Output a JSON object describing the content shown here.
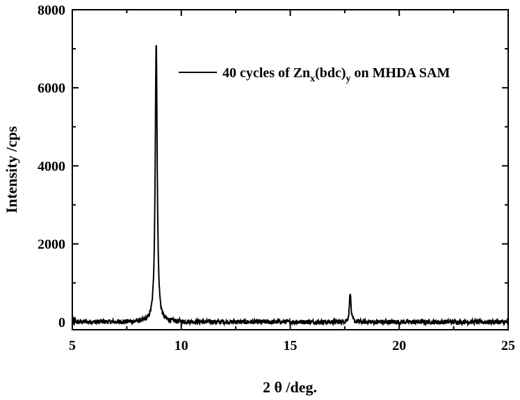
{
  "chart_data": {
    "type": "line",
    "xlabel": "2 θ  /deg.",
    "ylabel": "Intensity /cps",
    "xlim": [
      5,
      25
    ],
    "ylim": [
      -200,
      8000
    ],
    "xticks": [
      5,
      10,
      15,
      20,
      25
    ],
    "yticks": [
      0,
      2000,
      4000,
      6000,
      8000
    ],
    "grid": false,
    "legend_position": "top-right",
    "legend": {
      "main": "40 cycles of Zn",
      "sub1": "x",
      "mid": "(bdc)",
      "sub2": "y",
      "tail": " on MHDA SAM"
    },
    "series": [
      {
        "name": "40 cycles of Zn_x(bdc)_y on MHDA SAM",
        "color": "#000000",
        "peaks": [
          {
            "x": 8.85,
            "height": 7200,
            "width": 0.08
          },
          {
            "x": 17.75,
            "height": 780,
            "width": 0.06
          }
        ],
        "baseline": 0,
        "noise": 60
      }
    ]
  }
}
